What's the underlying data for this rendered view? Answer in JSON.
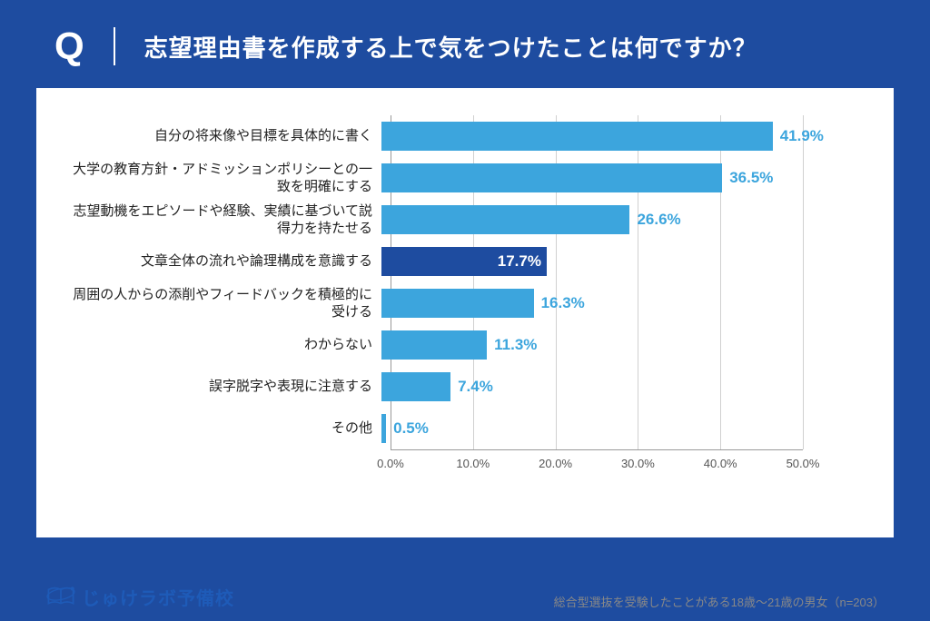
{
  "header": {
    "q_mark": "Q",
    "question": "志望理由書を作成する上で気をつけたことは何ですか？"
  },
  "chart": {
    "type": "bar",
    "bar_default_color": "#3ca5dd",
    "bar_highlight_color": "#1e4ca0",
    "value_label_color": "#3ca5dd",
    "grid_color": "#d0d0d0",
    "xlim": [
      0,
      50
    ],
    "xtick_step": 10,
    "xticks": [
      "0.0%",
      "10.0%",
      "20.0%",
      "30.0%",
      "40.0%",
      "50.0%"
    ],
    "items": [
      {
        "label": "自分の将来像や目標を具体的に書く",
        "value": 41.9,
        "display": "41.9%",
        "highlight": false
      },
      {
        "label": "大学の教育方針・アドミッションポリシーとの一致を明確にする",
        "value": 36.5,
        "display": "36.5%",
        "highlight": false
      },
      {
        "label": "志望動機をエピソードや経験、実績に基づいて説得力を持たせる",
        "value": 26.6,
        "display": "26.6%",
        "highlight": false
      },
      {
        "label": "文章全体の流れや論理構成を意識する",
        "value": 17.7,
        "display": "17.7%",
        "highlight": true
      },
      {
        "label": "周囲の人からの添削やフィードバックを積極的に受ける",
        "value": 16.3,
        "display": "16.3%",
        "highlight": false
      },
      {
        "label": "わからない",
        "value": 11.3,
        "display": "11.3%",
        "highlight": false
      },
      {
        "label": "誤字脱字や表現に注意する",
        "value": 7.4,
        "display": "7.4%",
        "highlight": false
      },
      {
        "label": "その他",
        "value": 0.5,
        "display": "0.5%",
        "highlight": false
      }
    ]
  },
  "footer": {
    "logo_text": "じゅけラボ予備校",
    "sample_note": "総合型選抜を受験したことがある18歳～21歳の男女（n=203）"
  },
  "colors": {
    "header_bg": "#1e4ca0",
    "panel_bg": "#ffffff",
    "logo_color": "#1e5bb8"
  }
}
